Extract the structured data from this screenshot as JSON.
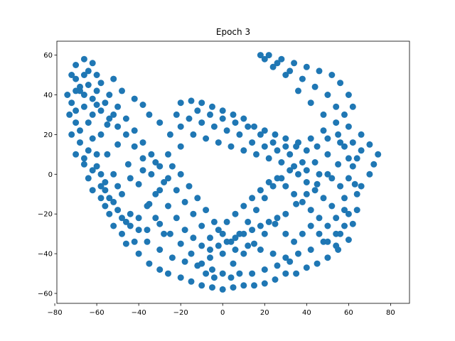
{
  "chart_data": {
    "type": "scatter",
    "title": "Epoch 3",
    "xlabel": "",
    "ylabel": "",
    "xlim": [
      -79,
      89
    ],
    "ylim": [
      -65,
      67
    ],
    "xticks": [
      -80,
      -60,
      -40,
      -20,
      0,
      20,
      40,
      60,
      80
    ],
    "yticks": [
      -60,
      -40,
      -20,
      0,
      20,
      40,
      60
    ],
    "grid": false,
    "legend": "none",
    "marker_color": "#1f77b4",
    "points": [
      [
        -70,
        55
      ],
      [
        -66,
        58
      ],
      [
        -72,
        50
      ],
      [
        -74,
        40
      ],
      [
        -73,
        30
      ],
      [
        -72,
        20
      ],
      [
        -70,
        10
      ],
      [
        -66,
        5
      ],
      [
        -62,
        -8
      ],
      [
        -58,
        -12
      ],
      [
        -56,
        -16
      ],
      [
        -54,
        -20
      ],
      [
        -52,
        -26
      ],
      [
        -48,
        -30
      ],
      [
        -46,
        -35
      ],
      [
        -40,
        -40
      ],
      [
        -35,
        -45
      ],
      [
        -30,
        -48
      ],
      [
        -26,
        -50
      ],
      [
        -20,
        -52
      ],
      [
        -15,
        -54
      ],
      [
        -10,
        -56
      ],
      [
        -5,
        -57
      ],
      [
        0,
        -58
      ],
      [
        5,
        -57
      ],
      [
        10,
        -56
      ],
      [
        15,
        -56
      ],
      [
        20,
        -55
      ],
      [
        25,
        -53
      ],
      [
        30,
        -50
      ],
      [
        35,
        -50
      ],
      [
        40,
        -47
      ],
      [
        45,
        -45
      ],
      [
        50,
        -42
      ],
      [
        55,
        -38
      ],
      [
        60,
        -33
      ],
      [
        62,
        -25
      ],
      [
        64,
        -18
      ],
      [
        64,
        -10
      ],
      [
        63,
        -5
      ],
      [
        66,
        -6
      ],
      [
        70,
        0
      ],
      [
        72,
        5
      ],
      [
        74,
        10
      ],
      [
        70,
        15
      ],
      [
        66,
        20
      ],
      [
        60,
        24
      ],
      [
        55,
        20
      ],
      [
        50,
        18
      ],
      [
        45,
        14
      ],
      [
        40,
        12
      ],
      [
        35,
        14
      ],
      [
        30,
        18
      ],
      [
        25,
        20
      ],
      [
        20,
        22
      ],
      [
        15,
        24
      ],
      [
        10,
        28
      ],
      [
        5,
        30
      ],
      [
        0,
        32
      ],
      [
        -5,
        34
      ],
      [
        -10,
        36
      ],
      [
        -15,
        37
      ],
      [
        -20,
        36
      ],
      [
        -22,
        30
      ],
      [
        -20,
        24
      ],
      [
        -25,
        20
      ],
      [
        -30,
        26
      ],
      [
        -35,
        30
      ],
      [
        -38,
        35
      ],
      [
        -42,
        38
      ],
      [
        -48,
        42
      ],
      [
        -52,
        48
      ],
      [
        -60,
        50
      ],
      [
        -64,
        45
      ],
      [
        -60,
        35
      ],
      [
        -55,
        25
      ],
      [
        -50,
        15
      ],
      [
        -45,
        5
      ],
      [
        -40,
        -5
      ],
      [
        -35,
        -15
      ],
      [
        -30,
        -25
      ],
      [
        -25,
        -30
      ],
      [
        -20,
        -35
      ],
      [
        -15,
        -40
      ],
      [
        -10,
        -45
      ],
      [
        -5,
        -48
      ],
      [
        0,
        -50
      ],
      [
        5,
        -45
      ],
      [
        10,
        -40
      ],
      [
        15,
        -35
      ],
      [
        20,
        -30
      ],
      [
        25,
        -25
      ],
      [
        30,
        -20
      ],
      [
        35,
        -15
      ],
      [
        40,
        -10
      ],
      [
        45,
        -5
      ],
      [
        50,
        0
      ],
      [
        55,
        5
      ],
      [
        60,
        8
      ],
      [
        58,
        14
      ],
      [
        -62,
        30
      ],
      [
        -58,
        20
      ],
      [
        -55,
        10
      ],
      [
        -52,
        0
      ],
      [
        -48,
        -10
      ],
      [
        -44,
        -20
      ],
      [
        -40,
        -28
      ],
      [
        -36,
        -34
      ],
      [
        -30,
        -38
      ],
      [
        -24,
        -42
      ],
      [
        -18,
        -44
      ],
      [
        -12,
        -46
      ],
      [
        -6,
        -42
      ],
      [
        0,
        -40
      ],
      [
        6,
        -38
      ],
      [
        12,
        -36
      ],
      [
        18,
        -38
      ],
      [
        24,
        -40
      ],
      [
        30,
        -42
      ],
      [
        36,
        -40
      ],
      [
        42,
        -38
      ],
      [
        48,
        -34
      ],
      [
        54,
        -30
      ],
      [
        58,
        -26
      ],
      [
        60,
        -20
      ],
      [
        58,
        -12
      ],
      [
        56,
        -6
      ],
      [
        52,
        -2
      ],
      [
        46,
        0
      ],
      [
        40,
        2
      ],
      [
        34,
        4
      ],
      [
        28,
        6
      ],
      [
        22,
        8
      ],
      [
        16,
        10
      ],
      [
        10,
        12
      ],
      [
        4,
        14
      ],
      [
        -2,
        16
      ],
      [
        -8,
        18
      ],
      [
        -14,
        20
      ],
      [
        -20,
        14
      ],
      [
        -26,
        10
      ],
      [
        -32,
        6
      ],
      [
        -38,
        2
      ],
      [
        -44,
        -2
      ],
      [
        -50,
        -6
      ],
      [
        -56,
        -4
      ],
      [
        -60,
        4
      ],
      [
        -64,
        12
      ],
      [
        -68,
        22
      ],
      [
        -70,
        32
      ],
      [
        -68,
        42
      ],
      [
        -64,
        52
      ],
      [
        -58,
        46
      ],
      [
        -54,
        40
      ],
      [
        -50,
        34
      ],
      [
        -46,
        28
      ],
      [
        -42,
        22
      ],
      [
        -38,
        16
      ],
      [
        -34,
        10
      ],
      [
        -30,
        4
      ],
      [
        -26,
        -2
      ],
      [
        -22,
        -8
      ],
      [
        -18,
        -14
      ],
      [
        -14,
        -20
      ],
      [
        -10,
        -26
      ],
      [
        -6,
        -32
      ],
      [
        -2,
        -28
      ],
      [
        2,
        -24
      ],
      [
        6,
        -20
      ],
      [
        10,
        -16
      ],
      [
        14,
        -12
      ],
      [
        18,
        -8
      ],
      [
        22,
        -4
      ],
      [
        26,
        -2
      ],
      [
        30,
        -6
      ],
      [
        34,
        -10
      ],
      [
        38,
        -14
      ],
      [
        42,
        -18
      ],
      [
        46,
        -22
      ],
      [
        50,
        -26
      ],
      [
        54,
        -22
      ],
      [
        52,
        -16
      ],
      [
        48,
        -12
      ],
      [
        44,
        -8
      ],
      [
        40,
        -4
      ],
      [
        36,
        0
      ],
      [
        32,
        2
      ],
      [
        28,
        -2
      ],
      [
        24,
        -6
      ],
      [
        20,
        -12
      ],
      [
        16,
        -18
      ],
      [
        12,
        -24
      ],
      [
        8,
        -30
      ],
      [
        4,
        -34
      ],
      [
        0,
        -30
      ],
      [
        -4,
        -24
      ],
      [
        -8,
        -18
      ],
      [
        -12,
        -12
      ],
      [
        -16,
        -6
      ],
      [
        -20,
        0
      ],
      [
        -24,
        4
      ],
      [
        -28,
        -4
      ],
      [
        -32,
        -10
      ],
      [
        -36,
        -16
      ],
      [
        -40,
        -22
      ],
      [
        -44,
        -26
      ],
      [
        -48,
        -22
      ],
      [
        -52,
        -14
      ],
      [
        -56,
        -8
      ],
      [
        -58,
        0
      ],
      [
        -60,
        10
      ],
      [
        -62,
        18
      ],
      [
        -64,
        26
      ],
      [
        -66,
        34
      ],
      [
        -68,
        44
      ],
      [
        -70,
        48
      ],
      [
        -66,
        40
      ],
      [
        -62,
        38
      ],
      [
        -58,
        32
      ],
      [
        -54,
        28
      ],
      [
        -50,
        24
      ],
      [
        -46,
        20
      ],
      [
        -42,
        14
      ],
      [
        -38,
        8
      ],
      [
        -34,
        0
      ],
      [
        -30,
        -8
      ],
      [
        -26,
        -16
      ],
      [
        -22,
        -22
      ],
      [
        -18,
        -28
      ],
      [
        -14,
        -32
      ],
      [
        -10,
        -36
      ],
      [
        -6,
        -38
      ],
      [
        -2,
        -36
      ],
      [
        2,
        -34
      ],
      [
        6,
        -32
      ],
      [
        10,
        -30
      ],
      [
        14,
        -28
      ],
      [
        18,
        -26
      ],
      [
        22,
        -24
      ],
      [
        26,
        -22
      ],
      [
        30,
        -30
      ],
      [
        34,
        -34
      ],
      [
        38,
        -30
      ],
      [
        42,
        -26
      ],
      [
        46,
        -30
      ],
      [
        50,
        -34
      ],
      [
        54,
        -36
      ],
      [
        56,
        -30
      ],
      [
        58,
        -18
      ],
      [
        60,
        -2
      ],
      [
        62,
        4
      ],
      [
        64,
        8
      ],
      [
        66,
        12
      ],
      [
        62,
        16
      ],
      [
        56,
        16
      ],
      [
        50,
        10
      ],
      [
        44,
        6
      ],
      [
        38,
        6
      ],
      [
        32,
        10
      ],
      [
        26,
        12
      ],
      [
        20,
        14
      ],
      [
        14,
        16
      ],
      [
        8,
        20
      ],
      [
        2,
        22
      ],
      [
        -4,
        24
      ],
      [
        -10,
        26
      ],
      [
        -16,
        28
      ],
      [
        -12,
        32
      ],
      [
        -6,
        30
      ],
      [
        0,
        28
      ],
      [
        6,
        26
      ],
      [
        12,
        24
      ],
      [
        18,
        20
      ],
      [
        24,
        16
      ],
      [
        30,
        14
      ],
      [
        36,
        16
      ],
      [
        42,
        18
      ],
      [
        48,
        22
      ],
      [
        54,
        26
      ],
      [
        58,
        30
      ],
      [
        62,
        34
      ],
      [
        60,
        40
      ],
      [
        56,
        46
      ],
      [
        52,
        50
      ],
      [
        46,
        52
      ],
      [
        40,
        54
      ],
      [
        34,
        56
      ],
      [
        28,
        58
      ],
      [
        22,
        60
      ],
      [
        26,
        56
      ],
      [
        32,
        52
      ],
      [
        38,
        48
      ],
      [
        44,
        44
      ],
      [
        50,
        40
      ],
      [
        54,
        34
      ],
      [
        48,
        30
      ],
      [
        42,
        36
      ],
      [
        36,
        42
      ],
      [
        30,
        50
      ],
      [
        24,
        54
      ],
      [
        20,
        58
      ],
      [
        18,
        60
      ],
      [
        -8,
        -50
      ],
      [
        -4,
        -52
      ],
      [
        4,
        -52
      ],
      [
        8,
        -50
      ],
      [
        14,
        -50
      ],
      [
        20,
        -48
      ],
      [
        26,
        -46
      ],
      [
        32,
        -44
      ],
      [
        -28,
        -30
      ],
      [
        -32,
        -22
      ],
      [
        -36,
        -28
      ],
      [
        -42,
        -34
      ],
      [
        -46,
        -24
      ],
      [
        -50,
        -18
      ],
      [
        -54,
        -12
      ],
      [
        -58,
        -6
      ],
      [
        -62,
        2
      ],
      [
        -64,
        -2
      ],
      [
        -66,
        8
      ],
      [
        -68,
        16
      ],
      [
        -70,
        26
      ],
      [
        -72,
        36
      ],
      [
        -70,
        42
      ],
      [
        -66,
        50
      ],
      [
        -62,
        56
      ],
      [
        -60,
        42
      ],
      [
        -56,
        36
      ],
      [
        -52,
        30
      ]
    ]
  }
}
